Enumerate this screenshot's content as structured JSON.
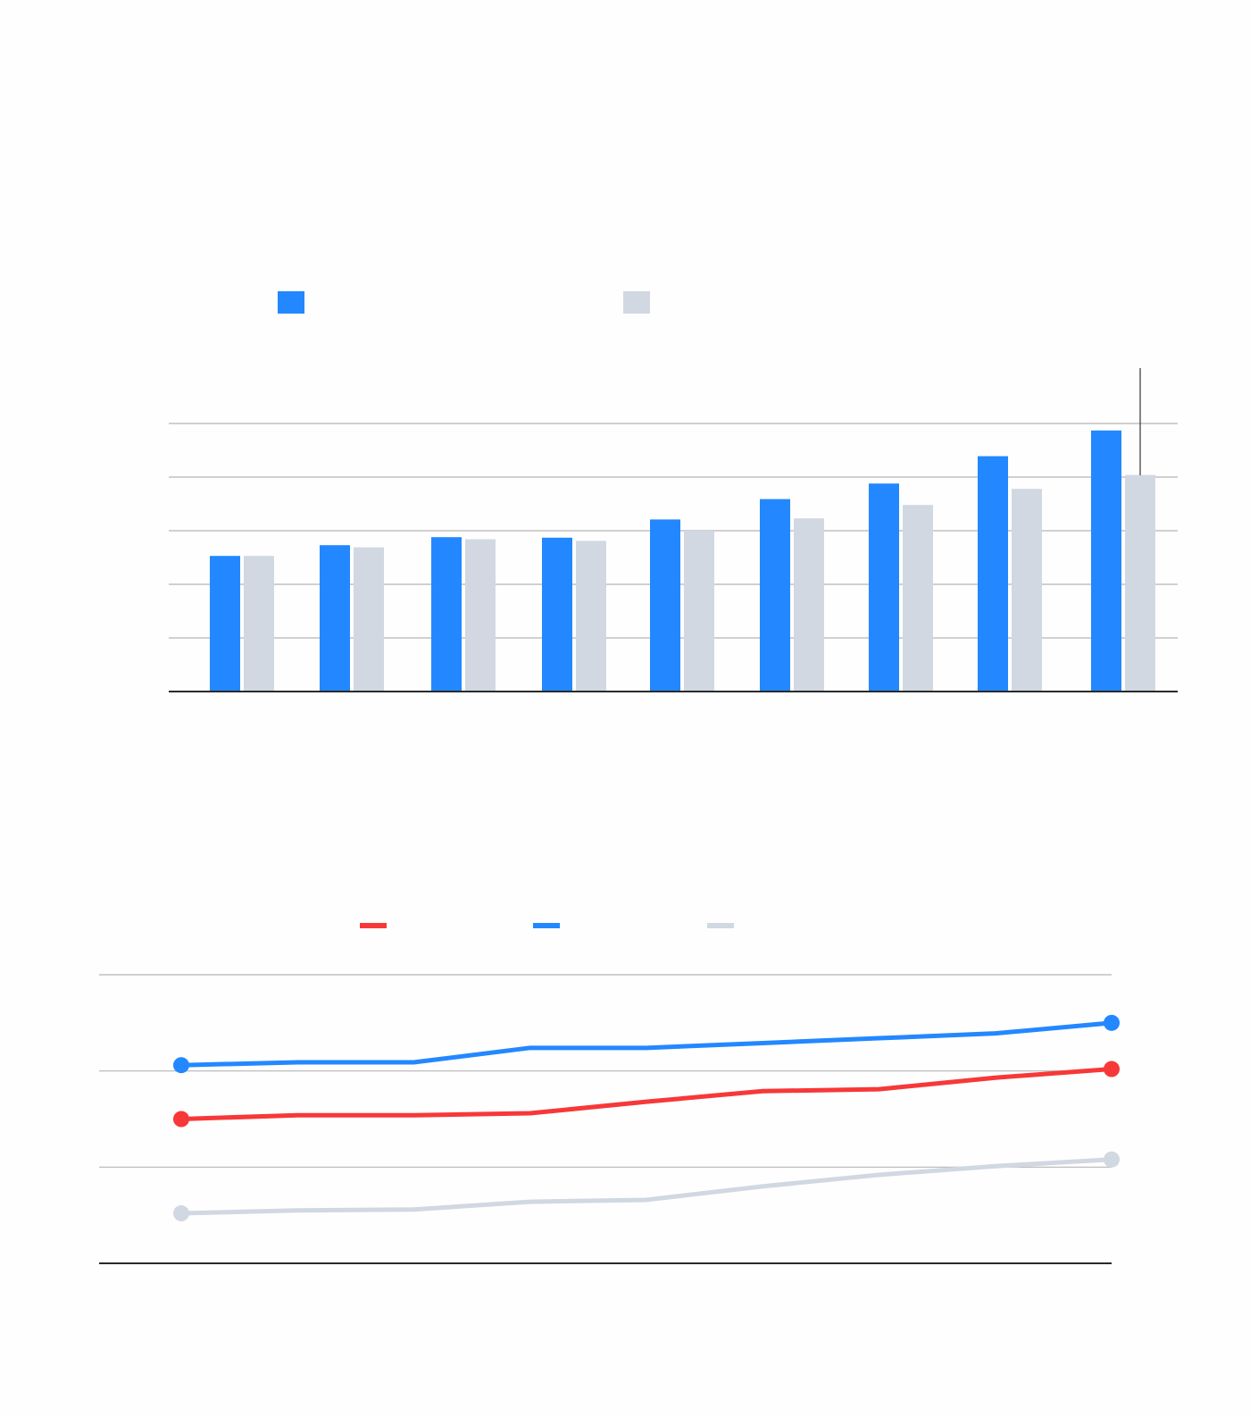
{
  "colors": {
    "blue": "#2388ff",
    "gray": "#d1d8e2",
    "red": "#f73838",
    "gridline": "#b5b5b5",
    "axis": "#2a2a2a"
  },
  "chart_data": [
    {
      "type": "bar",
      "title": "",
      "xlabel": "",
      "ylabel": "",
      "legend": "top-left",
      "grid": true,
      "ylim": [
        0,
        5
      ],
      "categories": [
        "",
        "",
        "",
        "",
        "",
        "",
        "",
        "",
        ""
      ],
      "series": [
        {
          "color": "#2388ff",
          "values": [
            2.53,
            2.73,
            2.88,
            2.87,
            3.21,
            3.59,
            3.88,
            4.39,
            4.87
          ]
        },
        {
          "color": "#d1d8e2",
          "values": [
            2.53,
            2.69,
            2.84,
            2.81,
            3.0,
            3.23,
            3.48,
            3.78,
            4.04
          ]
        }
      ],
      "annotations": [
        {
          "type": "vertical-marker",
          "x_index": 8
        }
      ]
    },
    {
      "type": "line",
      "title": "",
      "xlabel": "",
      "ylabel": "",
      "legend": "top-center",
      "grid": true,
      "ylim": [
        0,
        3
      ],
      "x": [
        1,
        2,
        3,
        4,
        5,
        6,
        7,
        8,
        9
      ],
      "series": [
        {
          "color": "#f73838",
          "values": [
            1.5,
            1.54,
            1.54,
            1.56,
            1.68,
            1.79,
            1.81,
            1.93,
            2.02
          ]
        },
        {
          "color": "#2388ff",
          "values": [
            2.06,
            2.09,
            2.09,
            2.24,
            2.24,
            2.29,
            2.34,
            2.39,
            2.5
          ]
        },
        {
          "color": "#d1d8e2",
          "values": [
            0.52,
            0.55,
            0.56,
            0.64,
            0.66,
            0.8,
            0.92,
            1.01,
            1.08
          ]
        }
      ]
    }
  ]
}
